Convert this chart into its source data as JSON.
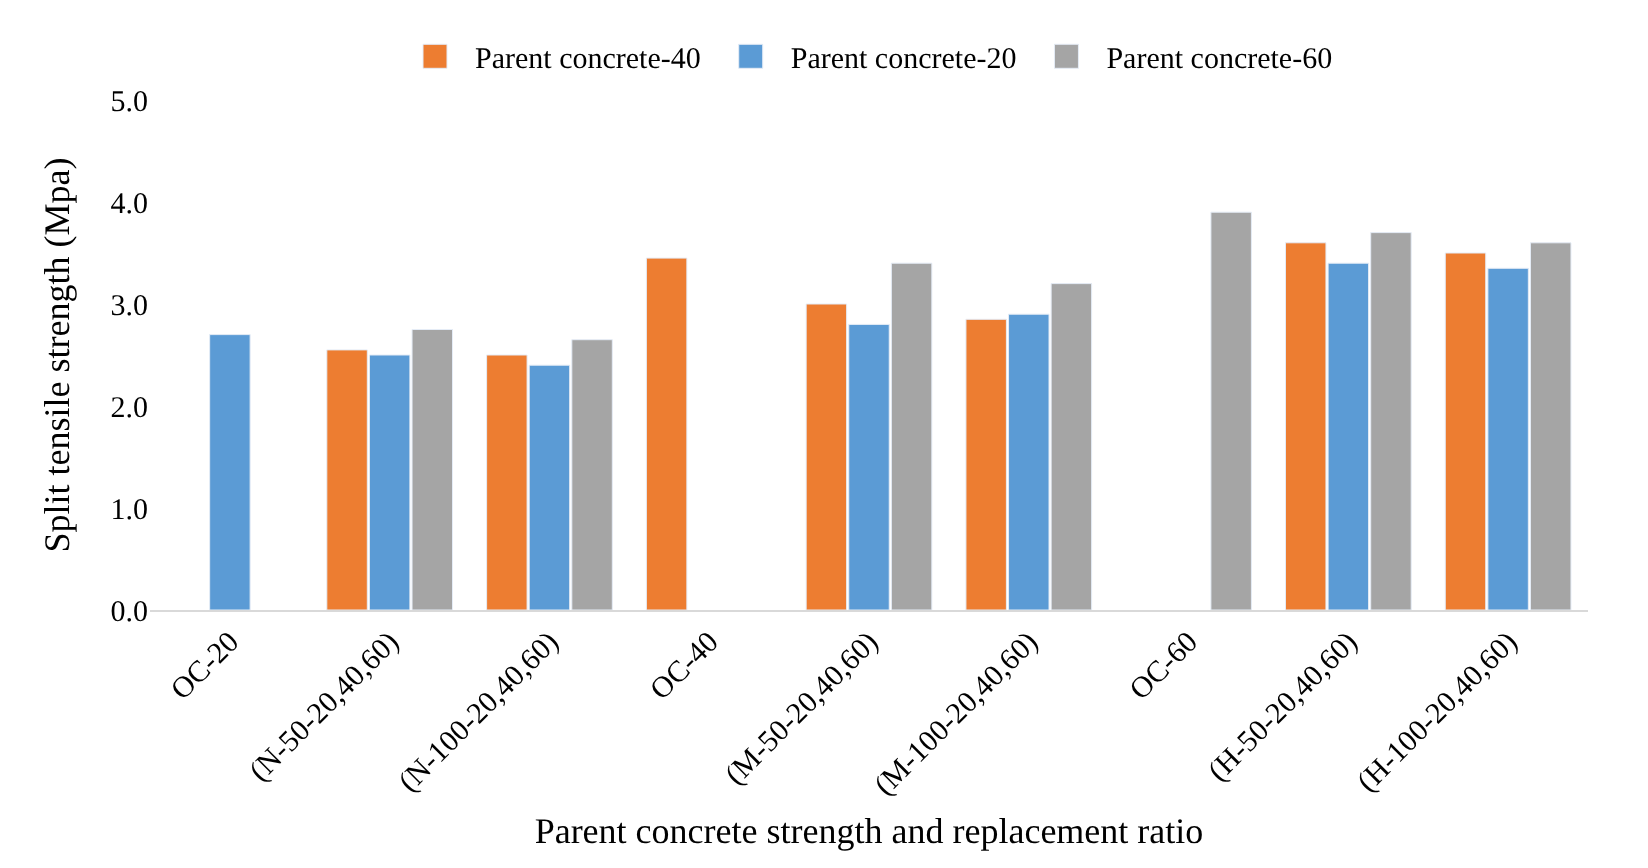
{
  "chart_data": {
    "type": "bar",
    "xlabel": "Parent concrete strength and replacement ratio",
    "ylabel": "Split tensile strength (Mpa)",
    "categories": [
      "OC-20",
      "(N-50-20,40,60)",
      "(N-100-20,40,60)",
      "OC-40",
      "(M-50-20,40,60)",
      "(M-100-20,40,60)",
      "OC-60",
      "(H-50-20,40,60)",
      "(H-100-20,40,60)"
    ],
    "series": [
      {
        "name": "Parent concrete-40",
        "color": "#ed7d31",
        "values": [
          null,
          2.55,
          2.5,
          3.45,
          3.0,
          2.85,
          null,
          3.6,
          3.5
        ]
      },
      {
        "name": "Parent concrete-20",
        "color": "#5b9bd5",
        "values": [
          2.7,
          2.5,
          2.4,
          null,
          2.8,
          2.9,
          null,
          3.4,
          3.35
        ]
      },
      {
        "name": "Parent concrete-60",
        "color": "#a5a5a5",
        "values": [
          null,
          2.75,
          2.65,
          null,
          3.4,
          3.2,
          3.9,
          3.7,
          3.6
        ]
      }
    ],
    "ylim": [
      0,
      5
    ],
    "yticks": [
      {
        "value": 0,
        "label": "0.0"
      },
      {
        "value": 1,
        "label": "1.0"
      },
      {
        "value": 2,
        "label": "2.0"
      },
      {
        "value": 3,
        "label": "3.0"
      },
      {
        "value": 4,
        "label": "4.0"
      },
      {
        "value": 5,
        "label": "5.0"
      }
    ],
    "grid": false,
    "legend": "top"
  }
}
